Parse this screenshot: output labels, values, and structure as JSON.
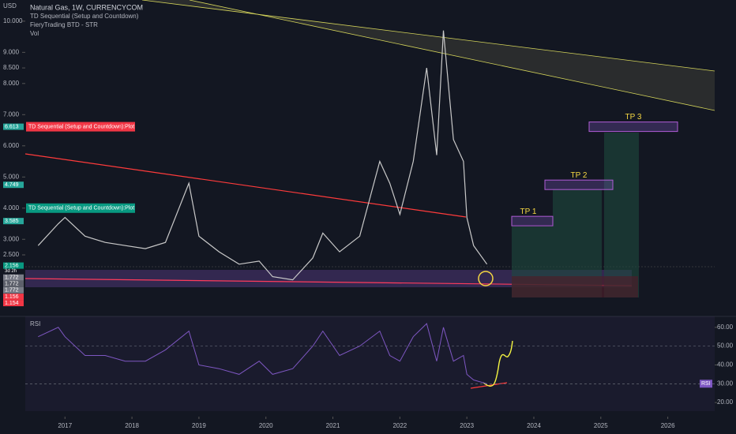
{
  "chart_data": {
    "type": "line",
    "title": "Natural Gas, 1W, CURRENCYCOM",
    "y_axis_label": "USD",
    "indicators": [
      "TD Sequential (Setup and Countdown)",
      "FieryTrading BTD - STR",
      "Vol"
    ],
    "x": [
      2016.6,
      2016.9,
      2017.0,
      2017.3,
      2017.6,
      2017.9,
      2018.2,
      2018.5,
      2018.85,
      2019.0,
      2019.3,
      2019.6,
      2019.9,
      2020.1,
      2020.4,
      2020.7,
      2020.85,
      2021.1,
      2021.4,
      2021.7,
      2021.85,
      2022.0,
      2022.2,
      2022.4,
      2022.55,
      2022.65,
      2022.8,
      2022.95,
      2023.0,
      2023.1,
      2023.3
    ],
    "series": [
      {
        "color": "#c9c9c9",
        "values": [
          2.8,
          3.5,
          3.7,
          3.1,
          2.9,
          2.8,
          2.7,
          2.9,
          4.8,
          3.1,
          2.6,
          2.2,
          2.3,
          1.8,
          1.7,
          2.4,
          3.2,
          2.6,
          3.1,
          5.5,
          4.8,
          3.8,
          5.5,
          8.5,
          5.7,
          9.7,
          6.2,
          5.5,
          3.7,
          2.8,
          2.2
        ]
      }
    ],
    "xlim": [
      2016.03,
      2026.7
    ],
    "xticks": [
      2017,
      2018,
      2019,
      2020,
      2021,
      2022,
      2023,
      2024,
      2025,
      2026
    ],
    "ylim": [
      0.55,
      10.68
    ],
    "yticks": [
      {
        "value": 10,
        "label": "10.000"
      },
      {
        "value": 9,
        "label": "9.000"
      },
      {
        "value": 8.5,
        "label": "8.500"
      },
      {
        "value": 8,
        "label": "8.000"
      },
      {
        "value": 7,
        "label": "7.000"
      },
      {
        "value": 6,
        "label": "6.000"
      },
      {
        "value": 5,
        "label": "5.000"
      },
      {
        "value": 4,
        "label": "4.000"
      },
      {
        "value": 3,
        "label": "3.000"
      },
      {
        "value": 2.5,
        "label": "2.500"
      }
    ],
    "price_badges": [
      {
        "value": 6.613,
        "label": "6.613",
        "color": "#26a69a"
      },
      {
        "value": 4.749,
        "label": "4.749",
        "color": "#26a69a"
      },
      {
        "value": 3.585,
        "label": "3.585",
        "color": "#26a69a"
      },
      {
        "value": 2.156,
        "label": "2.156",
        "color": "#089981"
      },
      {
        "value": 1.772,
        "label": "1.772",
        "color": "#787b86"
      },
      {
        "value": 1.772,
        "label": "1.772",
        "color": "#5d606b"
      },
      {
        "value": 1.772,
        "label": "1.772",
        "color": "#787b86"
      },
      {
        "value": 1.156,
        "label": "1.156",
        "color": "#f23645"
      },
      {
        "value": 1.154,
        "label": "1.154",
        "color": "#f23645"
      }
    ],
    "countdown": "3d 2h",
    "td_labels": [
      {
        "text": "TD Sequential (Setup and Countdown):Plot",
        "color": "#f23645",
        "value": 6.613
      },
      {
        "text": "TD Sequential (Setup and Countdown):Plot",
        "color": "#089981",
        "value": 4.0
      }
    ],
    "targets": [
      {
        "label": "TP 1",
        "value": 3.585
      },
      {
        "label": "TP 2",
        "value": 4.749
      },
      {
        "label": "TP 3",
        "value": 6.613
      }
    ],
    "rsi": {
      "label": "RSI",
      "values": [
        55,
        60,
        55,
        45,
        45,
        42,
        42,
        48,
        58,
        40,
        38,
        35,
        42,
        35,
        38,
        50,
        58,
        45,
        50,
        58,
        45,
        42,
        55,
        62,
        42,
        60,
        42,
        45,
        35,
        32,
        30
      ],
      "color": "#7e57c2",
      "ylim": [
        15,
        65.8
      ],
      "yticks": [
        {
          "value": 60,
          "label": "60.00"
        },
        {
          "value": 50,
          "label": "50.00"
        },
        {
          "value": 40,
          "label": "40.00"
        },
        {
          "value": 30,
          "label": "30.00"
        },
        {
          "value": 20,
          "label": "20.00"
        }
      ]
    }
  }
}
